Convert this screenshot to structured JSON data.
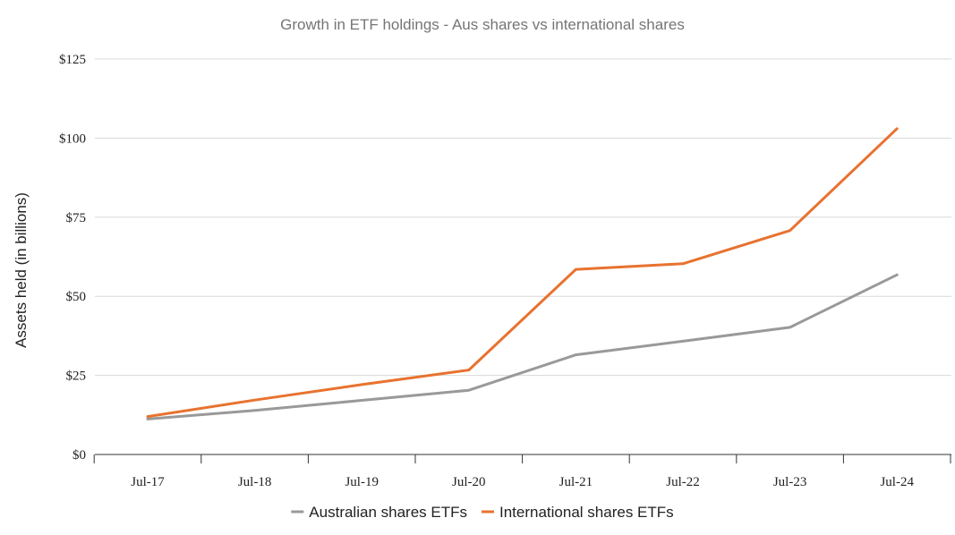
{
  "chart_data": {
    "type": "line",
    "title": "Growth in ETF holdings - Aus shares vs international shares",
    "xlabel": "",
    "ylabel": "Assets held (in billions)",
    "categories": [
      "Jul-17",
      "Jul-18",
      "Jul-19",
      "Jul-20",
      "Jul-21",
      "Jul-22",
      "Jul-23",
      "Jul-24"
    ],
    "ylim": [
      0,
      125
    ],
    "yticks": [
      0,
      25,
      50,
      75,
      100,
      125
    ],
    "ytick_labels": [
      "$0",
      "$25",
      "$50",
      "$75",
      "$100",
      "$125"
    ],
    "grid": true,
    "legend_position": "bottom",
    "series": [
      {
        "name": "Australian shares ETFs",
        "color": "#999999",
        "values": [
          11.2,
          13.9,
          17.1,
          20.3,
          31.5,
          35.8,
          40.2,
          56.8
        ]
      },
      {
        "name": "International shares ETFs",
        "color": "#e8722f",
        "values": [
          12.0,
          17.2,
          22.1,
          26.7,
          58.5,
          60.3,
          70.8,
          103.0
        ]
      }
    ]
  }
}
